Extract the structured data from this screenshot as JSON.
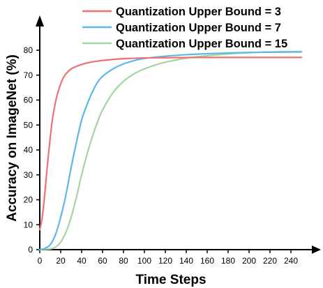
{
  "chart_data": {
    "type": "line",
    "title": "",
    "xlabel": "Time Steps",
    "ylabel": "Accuracy on ImageNet (%)",
    "xlim": [
      0,
      250
    ],
    "ylim": [
      0,
      80
    ],
    "xticks": [
      0,
      20,
      40,
      60,
      80,
      100,
      120,
      140,
      160,
      180,
      200,
      220,
      240
    ],
    "yticks": [
      0,
      10,
      20,
      30,
      40,
      50,
      60,
      70,
      80
    ],
    "grid": false,
    "legend": "top-right",
    "series": [
      {
        "name": "Quantization Upper Bound = 3",
        "color": "#f07070",
        "x": [
          0,
          2,
          4,
          6,
          8,
          10,
          12,
          14,
          16,
          18,
          20,
          22,
          25,
          30,
          35,
          40,
          50,
          60,
          70,
          80,
          100,
          120,
          150,
          200,
          250
        ],
        "y": [
          8,
          12,
          19,
          28,
          37,
          45,
          52,
          57,
          61,
          64,
          66.5,
          68.5,
          70.5,
          72.5,
          73.5,
          74.3,
          75.3,
          75.9,
          76.3,
          76.6,
          76.9,
          77.0,
          77.1,
          77.1,
          77.1
        ]
      },
      {
        "name": "Quantization Upper Bound = 7",
        "color": "#5bb8e8",
        "x": [
          0,
          5,
          10,
          15,
          20,
          25,
          30,
          35,
          40,
          45,
          50,
          55,
          60,
          70,
          80,
          90,
          100,
          120,
          140,
          160,
          180,
          200,
          220,
          250
        ],
        "y": [
          0,
          0.5,
          2,
          6,
          13,
          22,
          33,
          43,
          52,
          58,
          63,
          67,
          69.5,
          72.5,
          74.5,
          75.8,
          76.7,
          77.6,
          78.2,
          78.6,
          78.9,
          79.1,
          79.2,
          79.3
        ]
      },
      {
        "name": "Quantization Upper Bound = 15",
        "color": "#a4d4a0",
        "x": [
          0,
          10,
          15,
          20,
          25,
          30,
          35,
          40,
          45,
          50,
          55,
          60,
          70,
          80,
          90,
          100,
          110,
          120,
          140,
          160,
          180,
          200,
          220,
          250
        ],
        "y": [
          0,
          0.3,
          1,
          3,
          7,
          13,
          21,
          30,
          38,
          45,
          51,
          56,
          63,
          67.5,
          70.5,
          72.5,
          74,
          75.2,
          76.8,
          77.8,
          78.5,
          79,
          79.3,
          79.5
        ]
      }
    ]
  }
}
